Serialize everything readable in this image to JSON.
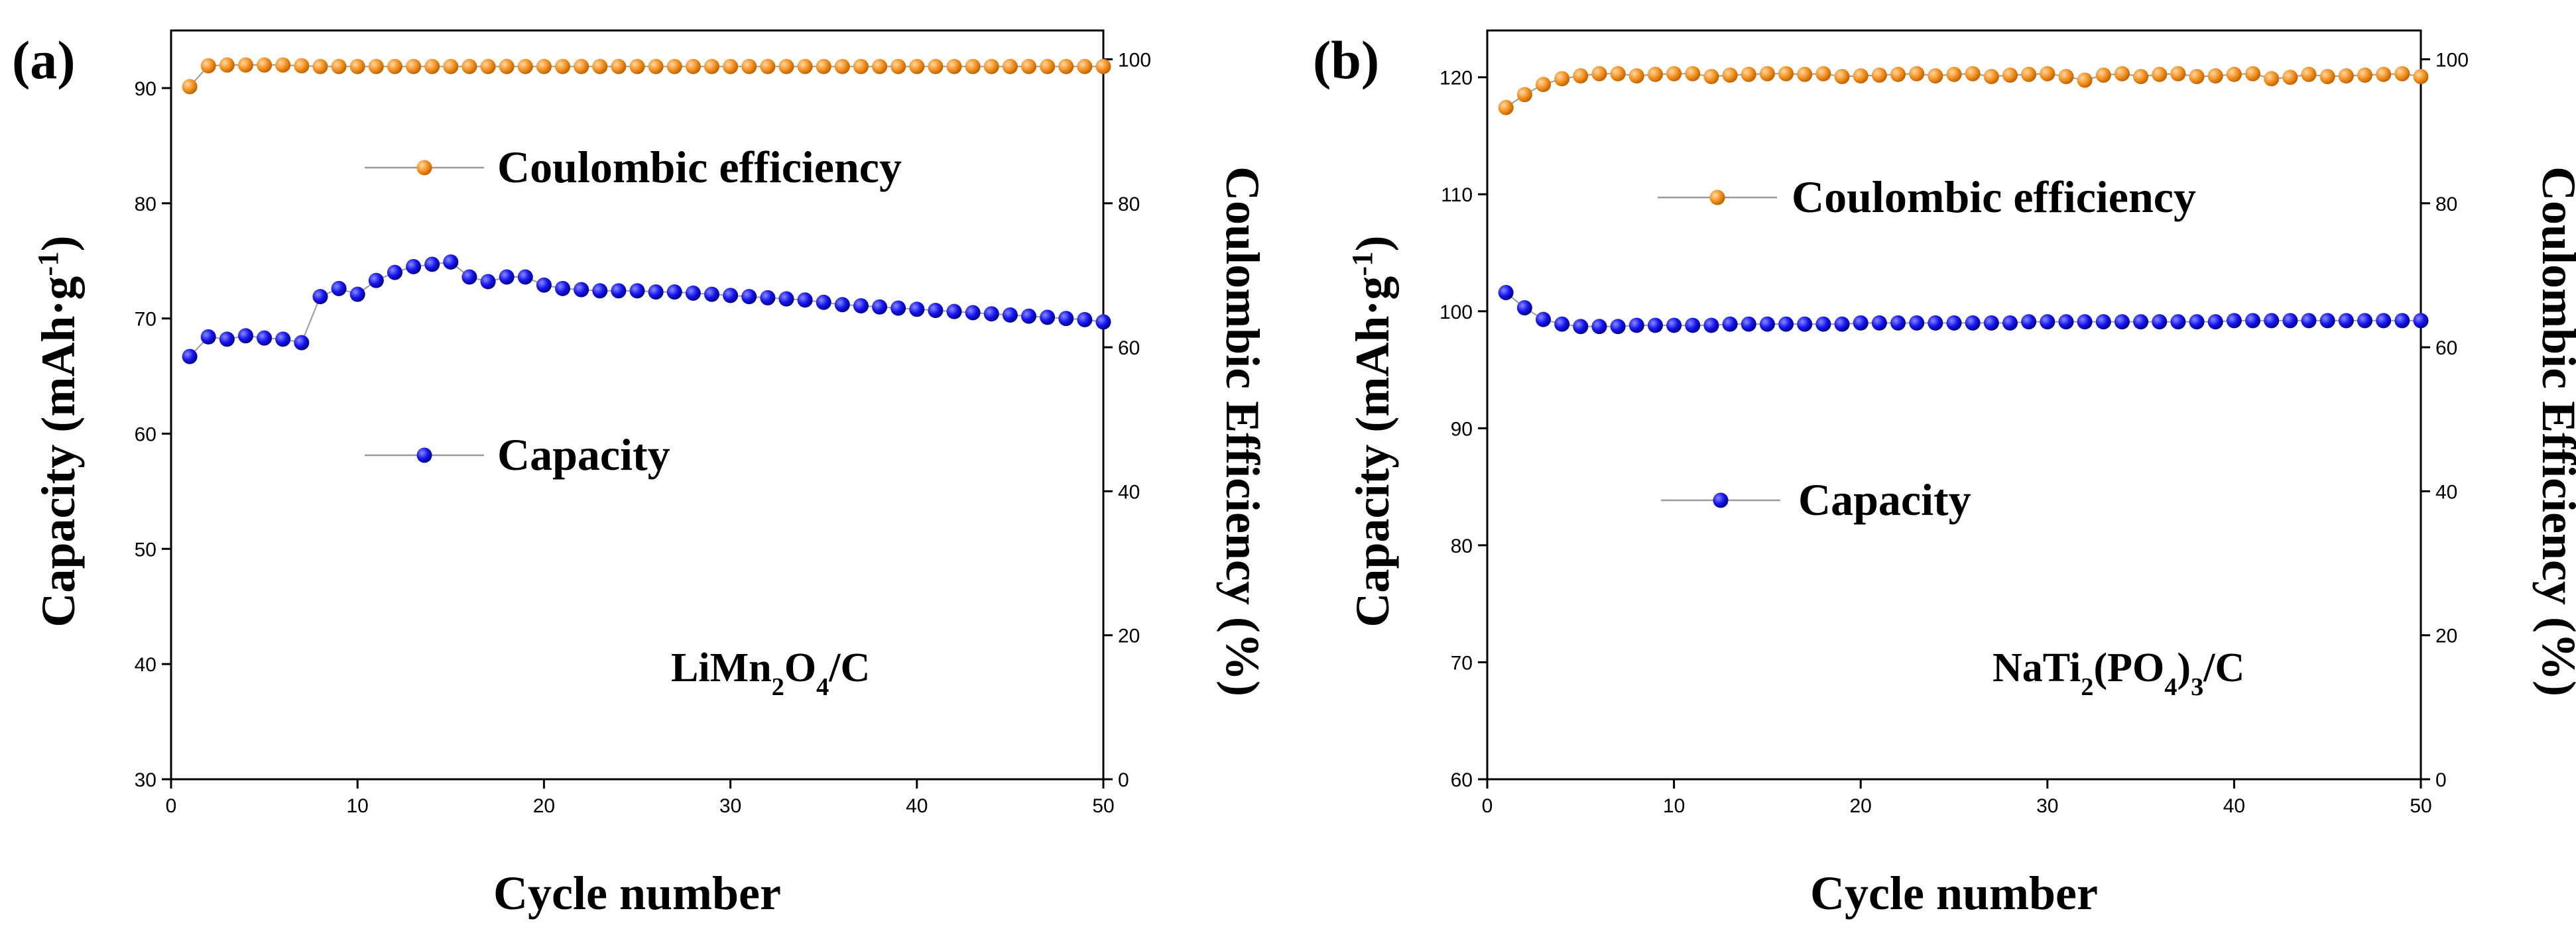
{
  "colors": {
    "capacity": "#1414f0",
    "ce": "#f5911e",
    "connector": "#9a9a9a",
    "axis": "#000000"
  },
  "chart_data": [
    {
      "type": "scatter",
      "panel_label": "(a)",
      "material": "LiMn2O4/C",
      "material_parts": [
        {
          "t": "LiMn",
          "s": "base"
        },
        {
          "t": "2",
          "s": "sub"
        },
        {
          "t": "O",
          "s": "base"
        },
        {
          "t": "4",
          "s": "sub"
        },
        {
          "t": "/C",
          "s": "base"
        }
      ],
      "xlabel": "Cycle number",
      "ylabel": "Capacity (mAh·g⁻¹)",
      "ylabel_parts": [
        {
          "t": "Capacity (mAh·g",
          "s": "base"
        },
        {
          "t": "-1",
          "s": "sup"
        },
        {
          "t": ")",
          "s": "base"
        }
      ],
      "y2label": "Coulombic Efficiency (%)",
      "xlim": [
        0,
        50
      ],
      "ylim": [
        30,
        95
      ],
      "y2lim": [
        0,
        104
      ],
      "xticks": [
        0,
        10,
        20,
        30,
        40,
        50
      ],
      "yticks": [
        30,
        40,
        50,
        60,
        70,
        80,
        90
      ],
      "y2ticks": [
        0,
        20,
        40,
        60,
        80,
        100
      ],
      "legend": {
        "ce": "Coulombic efficiency",
        "capacity": "Capacity"
      },
      "series": [
        {
          "name": "Capacity",
          "axis": "left",
          "x": [
            1,
            2,
            3,
            4,
            5,
            6,
            7,
            8,
            9,
            10,
            11,
            12,
            13,
            14,
            15,
            16,
            17,
            18,
            19,
            20,
            21,
            22,
            23,
            24,
            25,
            26,
            27,
            28,
            29,
            30,
            31,
            32,
            33,
            34,
            35,
            36,
            37,
            38,
            39,
            40,
            41,
            42,
            43,
            44,
            45,
            46,
            47,
            48,
            49,
            50
          ],
          "values": [
            66.7,
            68.4,
            68.2,
            68.5,
            68.3,
            68.2,
            67.9,
            71.9,
            72.6,
            72.1,
            73.3,
            74.0,
            74.5,
            74.7,
            74.9,
            73.6,
            73.2,
            73.6,
            73.6,
            72.9,
            72.6,
            72.5,
            72.4,
            72.4,
            72.4,
            72.3,
            72.3,
            72.2,
            72.1,
            72.0,
            71.9,
            71.8,
            71.7,
            71.6,
            71.4,
            71.2,
            71.1,
            71.0,
            70.9,
            70.8,
            70.7,
            70.6,
            70.5,
            70.4,
            70.3,
            70.2,
            70.1,
            70.0,
            69.9,
            69.7
          ]
        },
        {
          "name": "Coulombic efficiency",
          "axis": "right",
          "x": [
            1,
            2,
            3,
            4,
            5,
            6,
            7,
            8,
            9,
            10,
            11,
            12,
            13,
            14,
            15,
            16,
            17,
            18,
            19,
            20,
            21,
            22,
            23,
            24,
            25,
            26,
            27,
            28,
            29,
            30,
            31,
            32,
            33,
            34,
            35,
            36,
            37,
            38,
            39,
            40,
            41,
            42,
            43,
            44,
            45,
            46,
            47,
            48,
            49,
            50
          ],
          "values": [
            96.2,
            99.1,
            99.2,
            99.2,
            99.2,
            99.2,
            99.1,
            99.0,
            99.0,
            99.0,
            99.0,
            99.0,
            99.0,
            99.0,
            99.0,
            99.0,
            99.0,
            99.0,
            99.0,
            99.0,
            99.0,
            99.0,
            99.0,
            99.0,
            99.0,
            99.0,
            99.0,
            99.0,
            99.0,
            99.0,
            99.0,
            99.0,
            99.0,
            99.0,
            99.0,
            99.0,
            99.0,
            99.0,
            99.0,
            99.0,
            99.0,
            99.0,
            99.0,
            99.0,
            99.0,
            99.0,
            99.0,
            99.0,
            99.0,
            99.0
          ]
        }
      ]
    },
    {
      "type": "scatter",
      "panel_label": "(b)",
      "material": "NaTi2(PO4)3/C",
      "material_parts": [
        {
          "t": "NaTi",
          "s": "base"
        },
        {
          "t": "2",
          "s": "sub"
        },
        {
          "t": "(PO",
          "s": "base"
        },
        {
          "t": "4",
          "s": "sub"
        },
        {
          "t": ")",
          "s": "base"
        },
        {
          "t": "3",
          "s": "sub"
        },
        {
          "t": "/C",
          "s": "base"
        }
      ],
      "xlabel": "Cycle number",
      "ylabel": "Capacity (mAh·g⁻¹)",
      "ylabel_parts": [
        {
          "t": "Capacity (mAh·g",
          "s": "base"
        },
        {
          "t": "-1",
          "s": "sup"
        },
        {
          "t": ")",
          "s": "base"
        }
      ],
      "y2label": "Coulombic Efficiency (%)",
      "xlim": [
        0,
        50
      ],
      "ylim": [
        60,
        124
      ],
      "y2lim": [
        0,
        104
      ],
      "xticks": [
        0,
        10,
        20,
        30,
        40,
        50
      ],
      "yticks": [
        60,
        70,
        80,
        90,
        100,
        110,
        120
      ],
      "y2ticks": [
        0,
        20,
        40,
        60,
        80,
        100
      ],
      "legend": {
        "ce": "Coulombic efficiency",
        "capacity": "Capacity"
      },
      "series": [
        {
          "name": "Capacity",
          "axis": "left",
          "x": [
            1,
            2,
            3,
            4,
            5,
            6,
            7,
            8,
            9,
            10,
            11,
            12,
            13,
            14,
            15,
            16,
            17,
            18,
            19,
            20,
            21,
            22,
            23,
            24,
            25,
            26,
            27,
            28,
            29,
            30,
            31,
            32,
            33,
            34,
            35,
            36,
            37,
            38,
            39,
            40,
            41,
            42,
            43,
            44,
            45,
            46,
            47,
            48,
            49,
            50
          ],
          "values": [
            101.6,
            100.3,
            99.3,
            98.9,
            98.7,
            98.7,
            98.7,
            98.8,
            98.8,
            98.8,
            98.8,
            98.8,
            98.9,
            98.9,
            98.9,
            98.9,
            98.9,
            98.9,
            98.9,
            99.0,
            99.0,
            99.0,
            99.0,
            99.0,
            99.0,
            99.0,
            99.0,
            99.0,
            99.1,
            99.1,
            99.1,
            99.1,
            99.1,
            99.1,
            99.1,
            99.1,
            99.1,
            99.1,
            99.1,
            99.2,
            99.2,
            99.2,
            99.2,
            99.2,
            99.2,
            99.2,
            99.2,
            99.2,
            99.2,
            99.2
          ]
        },
        {
          "name": "Coulombic efficiency",
          "axis": "right",
          "x": [
            1,
            2,
            3,
            4,
            5,
            6,
            7,
            8,
            9,
            10,
            11,
            12,
            13,
            14,
            15,
            16,
            17,
            18,
            19,
            20,
            21,
            22,
            23,
            24,
            25,
            26,
            27,
            28,
            29,
            30,
            31,
            32,
            33,
            34,
            35,
            36,
            37,
            38,
            39,
            40,
            41,
            42,
            43,
            44,
            45,
            46,
            47,
            48,
            49,
            50
          ],
          "values": [
            93.3,
            95.1,
            96.5,
            97.3,
            97.7,
            98.0,
            98.0,
            97.7,
            97.9,
            98.0,
            98.0,
            97.6,
            97.8,
            97.9,
            98.0,
            98.0,
            97.9,
            98.0,
            97.6,
            97.7,
            97.8,
            97.9,
            98.0,
            97.7,
            97.9,
            98.0,
            97.6,
            97.8,
            97.9,
            98.0,
            97.6,
            97.1,
            97.8,
            98.0,
            97.6,
            97.9,
            98.0,
            97.6,
            97.7,
            97.9,
            98.0,
            97.3,
            97.5,
            97.9,
            97.6,
            97.7,
            97.8,
            97.9,
            98.0,
            97.6
          ]
        }
      ]
    }
  ]
}
